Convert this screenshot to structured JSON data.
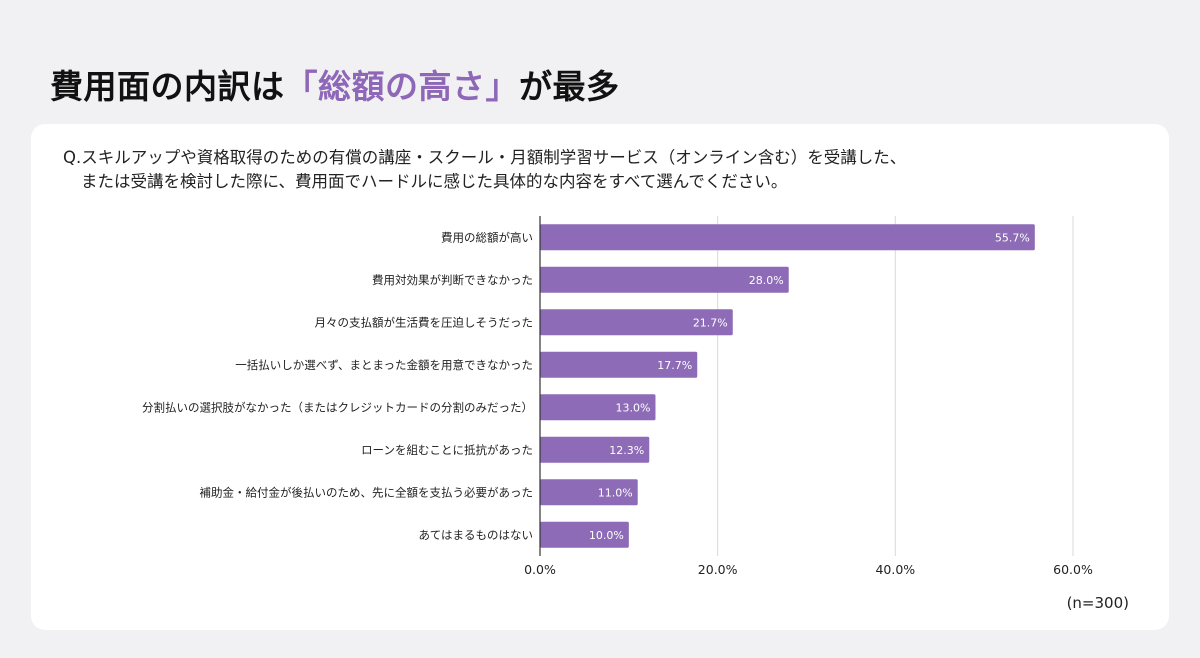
{
  "title": {
    "before": "費用面の内訳は",
    "highlight": "「総額の高さ」",
    "after": "が最多"
  },
  "question": {
    "line1": "Q.スキルアップや資格取得のための有償の講座・スクール・月額制学習サービス（オンライン含む）を受講した、",
    "line2": "または受講を検討した際に、費用面でハードルに感じた具体的な内容をすべて選んでください。"
  },
  "sample_size": "(n=300)",
  "colors": {
    "bar": "#8d6bb6",
    "bar_label": "#ffffff",
    "grid": "#d9d9d9",
    "axis": "#333333",
    "title_highlight": "#8e67b8"
  },
  "chart_data": {
    "type": "bar",
    "orientation": "horizontal",
    "categories": [
      "費用の総額が高い",
      "費用対効果が判断できなかった",
      "月々の支払額が生活費を圧迫しそうだった",
      "一括払いしか選べず、まとまった金額を用意できなかった",
      "分割払いの選択肢がなかった（またはクレジットカードの分割のみだった）",
      "ローンを組むことに抵抗があった",
      "補助金・給付金が後払いのため、先に全額を支払う必要があった",
      "あてはまるものはない"
    ],
    "values": [
      55.7,
      28.0,
      21.7,
      17.7,
      13.0,
      12.3,
      11.0,
      10.0
    ],
    "value_labels": [
      "55.7%",
      "28.0%",
      "21.7%",
      "17.7%",
      "13.0%",
      "12.3%",
      "11.0%",
      "10.0%"
    ],
    "xlim": [
      0,
      60
    ],
    "xticks": [
      0,
      20,
      40,
      60
    ],
    "xtick_labels": [
      "0.0%",
      "20.0%",
      "40.0%",
      "60.0%"
    ],
    "grid": true
  }
}
